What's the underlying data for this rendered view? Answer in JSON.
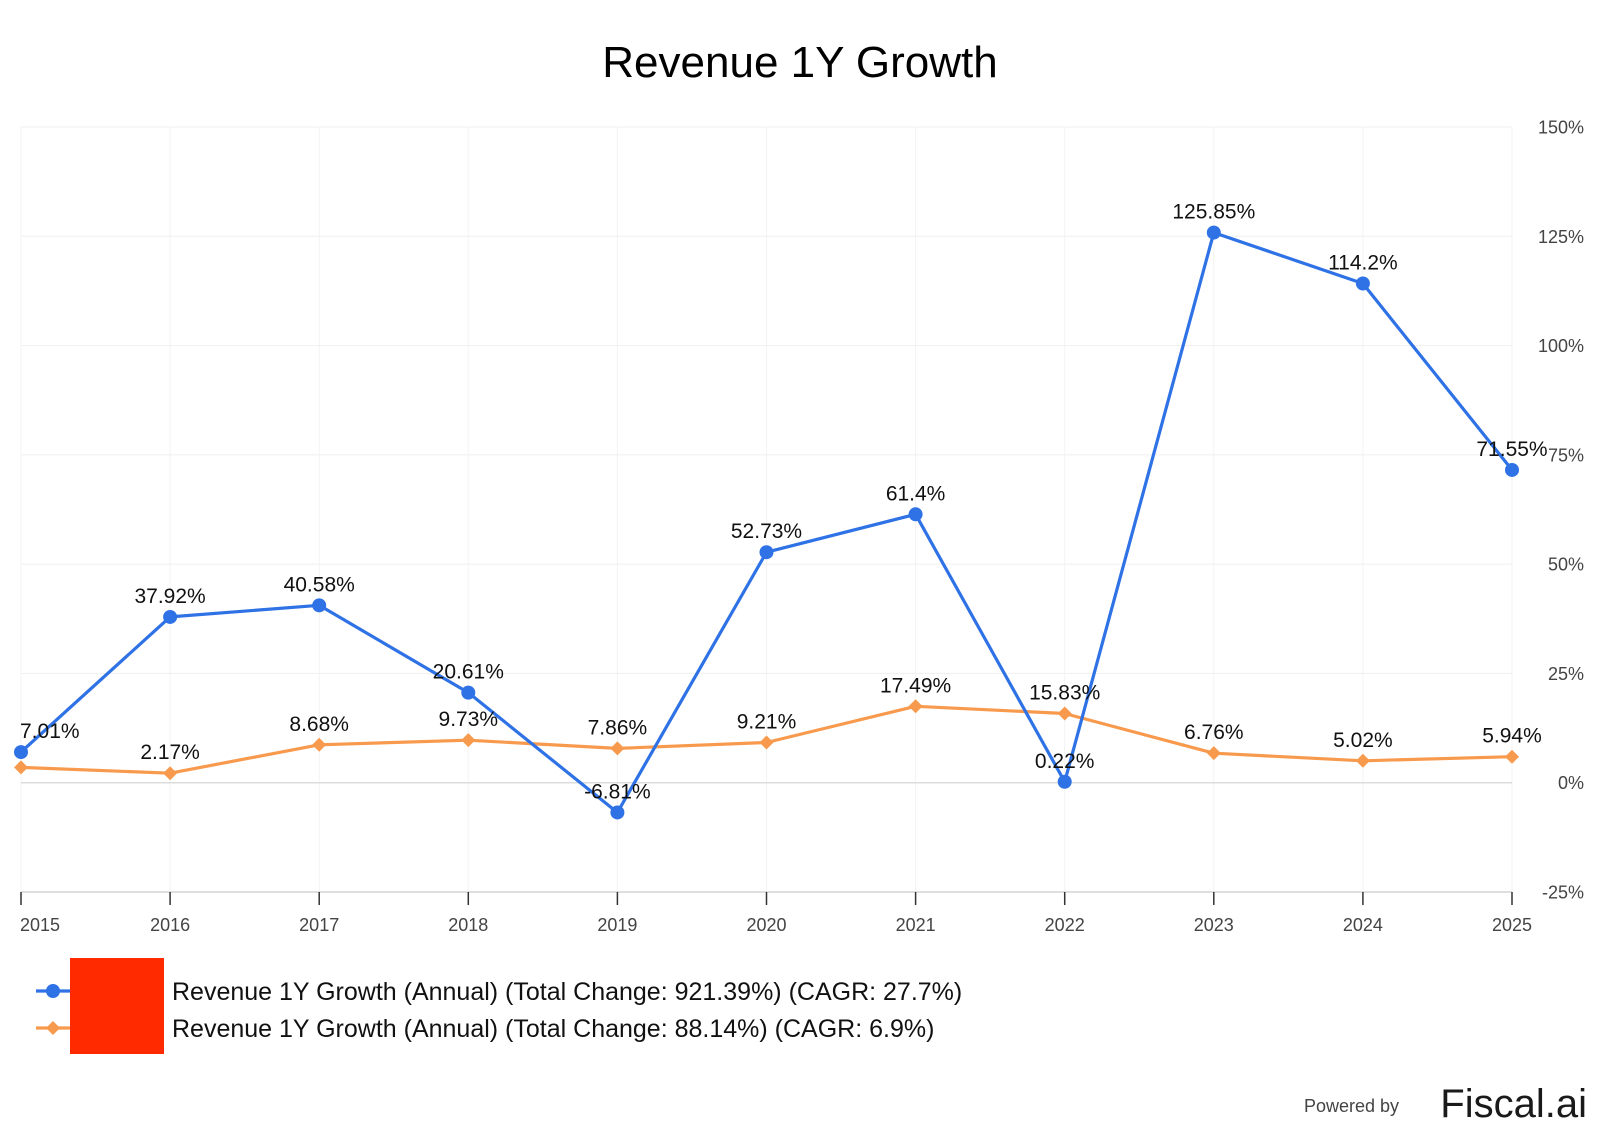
{
  "chart_data": {
    "type": "line",
    "title": "Revenue 1Y Growth",
    "x": [
      "2015",
      "2016",
      "2017",
      "2018",
      "2019",
      "2020",
      "2021",
      "2022",
      "2023",
      "2024",
      "2025"
    ],
    "ylim": [
      -25,
      150
    ],
    "y_ticks": [
      150,
      125,
      100,
      75,
      50,
      25,
      0,
      -25
    ],
    "y_tick_labels": [
      "150%",
      "125%",
      "100%",
      "75%",
      "50%",
      "25%",
      "0%",
      "-25%"
    ],
    "y_axis_side": "right",
    "grid": true,
    "legend_position": "bottom-left",
    "series": [
      {
        "name": "Revenue 1Y Growth (Annual) (Total Change: 921.39%) (CAGR: 27.7%)",
        "color": "#2e72e6",
        "marker": "circle",
        "values": [
          7.01,
          37.92,
          40.58,
          20.61,
          -6.81,
          52.73,
          61.4,
          0.22,
          125.85,
          114.2,
          71.55
        ],
        "labels": [
          "7.01%",
          "37.92%",
          "40.58%",
          "20.61%",
          "-6.81%",
          "52.73%",
          "61.4%",
          "0.22%",
          "125.85%",
          "114.2%",
          "71.55%"
        ]
      },
      {
        "name": "Revenue 1Y Growth (Annual) (Total Change: 88.14%) (CAGR: 6.9%)",
        "color": "#f89a4d",
        "marker": "diamond",
        "values": [
          3.5,
          2.17,
          8.68,
          9.73,
          7.86,
          9.21,
          17.49,
          15.83,
          6.76,
          5.02,
          5.94
        ],
        "labels": [
          null,
          "2.17%",
          "8.68%",
          "9.73%",
          "7.86%",
          "9.21%",
          "17.49%",
          "15.83%",
          "6.76%",
          "5.02%",
          "5.94%"
        ]
      }
    ]
  },
  "legend": {
    "redaction_color": "#ff2a00"
  },
  "footer": {
    "powered_by": "Powered by",
    "brand": "Fiscal.ai"
  }
}
